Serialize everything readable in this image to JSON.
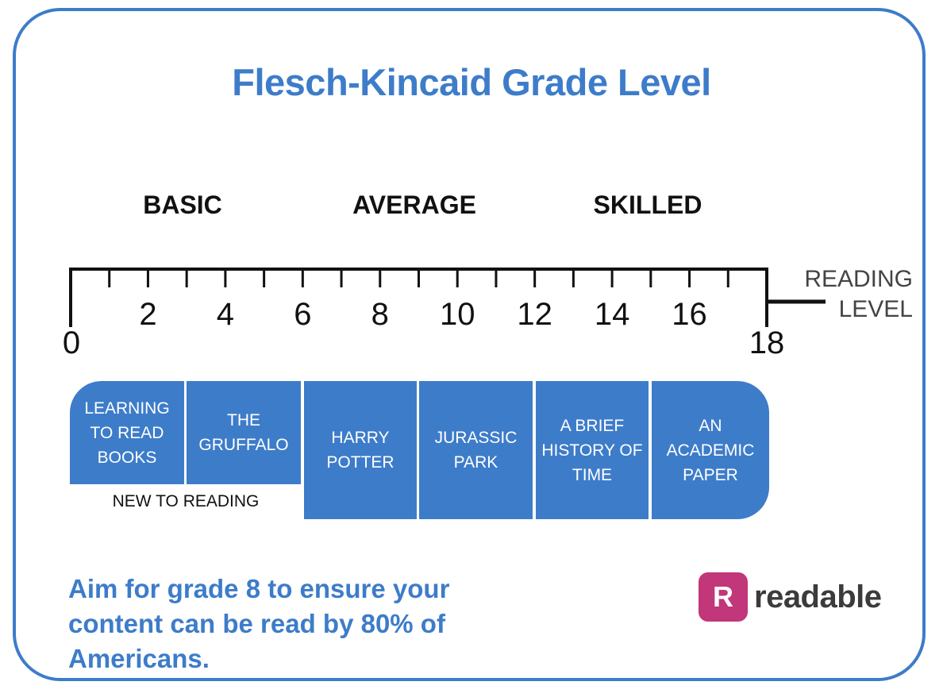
{
  "title": "Flesch-Kincaid Grade Level",
  "categories": [
    "BASIC",
    "AVERAGE",
    "SKILLED"
  ],
  "scale": {
    "min_label": "0",
    "max_label": "18",
    "tick_labels": [
      "2",
      "4",
      "6",
      "8",
      "10",
      "12",
      "14",
      "16"
    ],
    "axis_label": "READING\nLEVEL"
  },
  "books": [
    {
      "label": "LEARNING\nTO READ\nBOOKS"
    },
    {
      "label": "THE\nGRUFFALO"
    },
    {
      "label": "HARRY\nPOTTER"
    },
    {
      "label": "JURASSIC\nPARK"
    },
    {
      "label": "A BRIEF\nHISTORY OF\nTIME"
    },
    {
      "label": "AN\nACADEMIC\nPAPER"
    }
  ],
  "new_to_reading": "NEW TO READING",
  "tagline": "Aim for grade 8 to ensure your content can be read by 80% of Americans.",
  "logo": {
    "mark": "R",
    "word": "readable",
    "color": "#c2367a"
  },
  "colors": {
    "accent": "#3d7cc9"
  }
}
